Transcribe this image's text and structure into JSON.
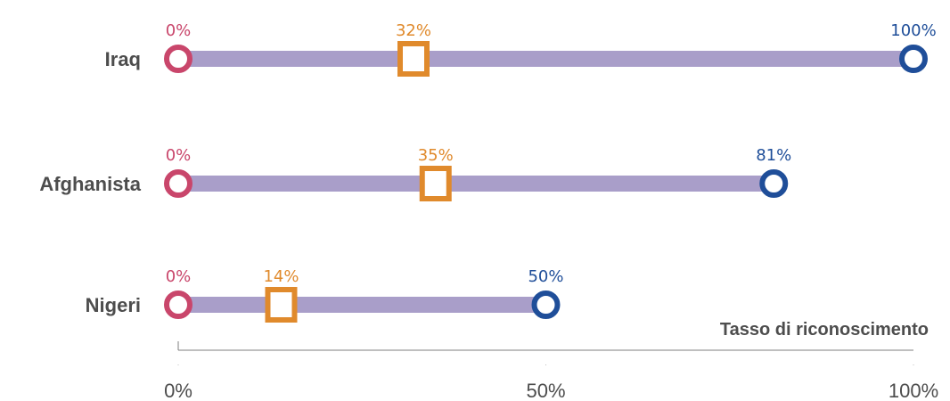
{
  "chart_data": {
    "type": "dumbbell",
    "xlabel": "Tasso di riconoscimento",
    "xlim": [
      0,
      100
    ],
    "ticks": [
      {
        "value": 0,
        "label": "0%"
      },
      {
        "value": 50,
        "label": "50%"
      },
      {
        "value": 100,
        "label": "100%"
      }
    ],
    "categories": [
      "Iraq",
      "Afghanista",
      "Nigeri"
    ],
    "series": [
      {
        "marker": "circle",
        "color": "#c9466b",
        "values": [
          0,
          0,
          0
        ],
        "labels": [
          "0%",
          "0%",
          "0%"
        ]
      },
      {
        "marker": "square",
        "color": "#e08a2c",
        "values": [
          32,
          35,
          14
        ],
        "labels": [
          "32%",
          "35%",
          "14%"
        ]
      },
      {
        "marker": "circle",
        "color": "#1f4e99",
        "values": [
          100,
          81,
          50
        ],
        "labels": [
          "100%",
          "81%",
          "50%"
        ]
      }
    ],
    "bar_color": "#a99ec9",
    "grid": false,
    "legend": "none"
  }
}
